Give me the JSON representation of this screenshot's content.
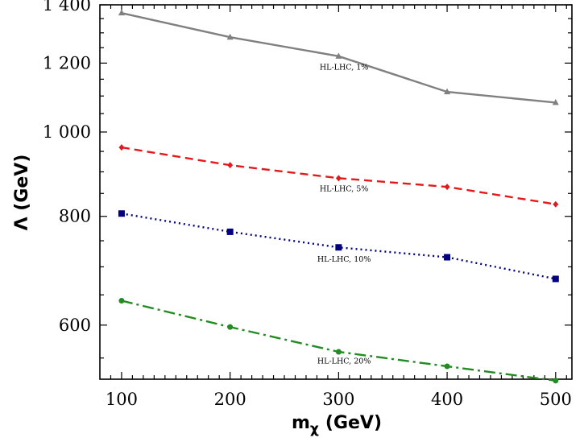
{
  "chart_data": {
    "type": "line",
    "title": "",
    "xlabel": "m",
    "xlabel_sub": "χ",
    "xlabel_unit": "(GeV)",
    "ylabel": "Λ (GeV)",
    "xlim": [
      80,
      515
    ],
    "ylim": [
      520,
      1400
    ],
    "yscale": "log",
    "x_ticks": [
      100,
      200,
      300,
      400,
      500
    ],
    "x_tick_labels": [
      "100",
      "200",
      "300",
      "400",
      "500"
    ],
    "y_ticks": [
      600,
      800,
      1000,
      1200,
      1400
    ],
    "y_tick_labels": [
      "600",
      "800",
      "1 000",
      "1 200",
      "1 400"
    ],
    "grid": false,
    "series": [
      {
        "name": "HL-LHC, 1%",
        "color": "#808080",
        "dash": "",
        "marker": "triangle",
        "x": [
          100,
          200,
          300,
          400,
          500
        ],
        "values": [
          1370,
          1285,
          1222,
          1112,
          1081
        ],
        "label_pos": [
          305,
          1180
        ]
      },
      {
        "name": "HL-LHC, 5%",
        "color": "#e31a1c",
        "dash": "10,6",
        "marker": "diamond",
        "x": [
          100,
          200,
          300,
          400,
          500
        ],
        "values": [
          960,
          916,
          885,
          865,
          826
        ],
        "label_pos": [
          305,
          855
        ]
      },
      {
        "name": "HL-LHC, 10%",
        "color": "#000080",
        "dash": "2,4",
        "marker": "square",
        "x": [
          100,
          200,
          300,
          400,
          500
        ],
        "values": [
          806,
          768,
          737,
          718,
          678
        ],
        "label_pos": [
          305,
          710
        ]
      },
      {
        "name": "HL-LHC, 20%",
        "color": "#228b22",
        "dash": "14,5,3,5",
        "marker": "circle",
        "x": [
          100,
          200,
          300,
          400,
          500
        ],
        "values": [
          640,
          597,
          559,
          538,
          518
        ],
        "label_pos": [
          305,
          542
        ]
      }
    ]
  }
}
